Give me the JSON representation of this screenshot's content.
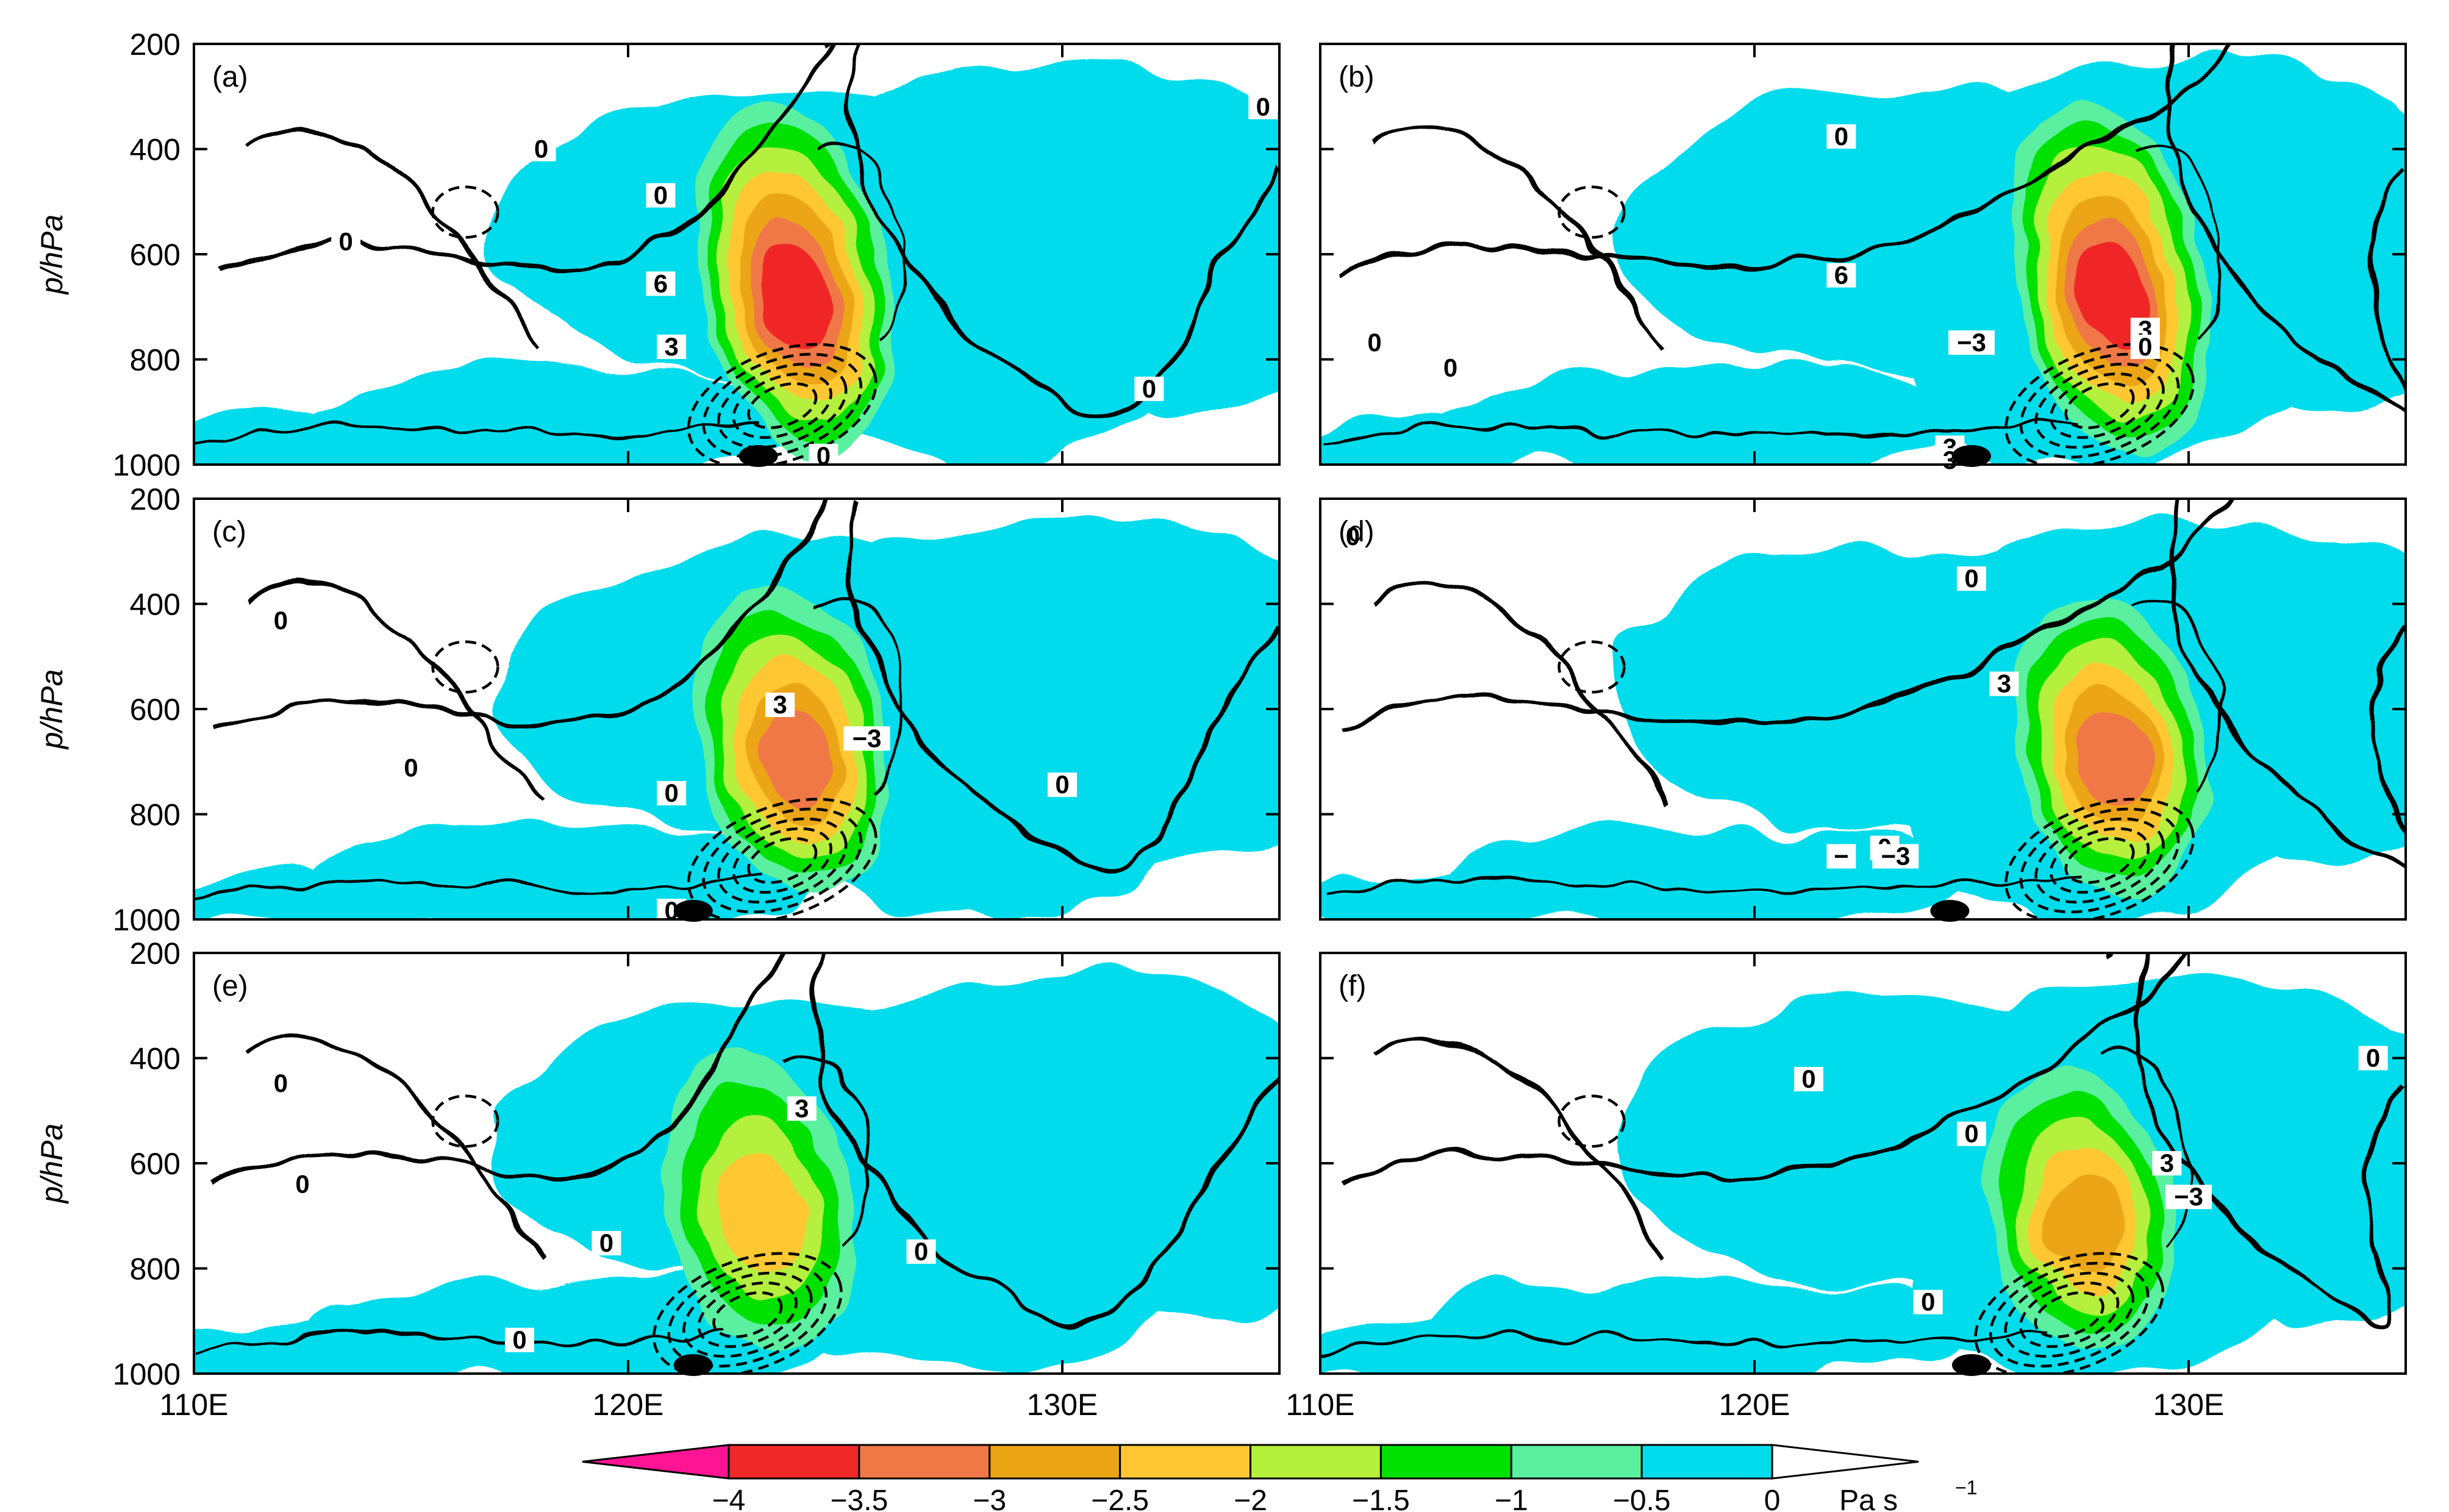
{
  "chart_data": {
    "type": "heatmap",
    "title": "",
    "xlabel": "",
    "ylabel": "p/hPa",
    "x_ticks": [
      "110E",
      "120E",
      "130E"
    ],
    "x_range_deg": [
      110,
      135
    ],
    "y_ticks": [
      "200",
      "400",
      "600",
      "800",
      "1000"
    ],
    "y_range_hPa": [
      200,
      1000
    ],
    "grid": false,
    "fill_variable": "vertical velocity (omega)",
    "contour_lines": "solid positive, dashed negative, bold zero line",
    "colors": {
      "c0": "#ff1493",
      "c1": "#f02828",
      "c2": "#f07846",
      "c3": "#eba514",
      "c4": "#ffc832",
      "c5": "#b4f03c",
      "c6": "#00e100",
      "c7": "#5af0a0",
      "c8": "#00dceb"
    },
    "colorbar": {
      "labels": [
        "−4",
        "−3.5",
        "−3",
        "−2.5",
        "−2",
        "−1.5",
        "−1",
        "−0.5",
        "0"
      ],
      "unit": "Pa s",
      "unit_exp": "−1",
      "levels": [
        -4,
        -3.5,
        -3,
        -2.5,
        -2,
        -1.5,
        -1,
        -0.5,
        0
      ]
    },
    "panels": [
      {
        "label": "(a)",
        "position_hint": "top-left",
        "contour_labels": [
          "0",
          "0",
          "0",
          "0",
          "0",
          "0",
          "6",
          "3"
        ],
        "marker_lon": 123,
        "core": {
          "lon": 123.8,
          "p_top": 300,
          "p_bottom": 990,
          "min_omega": -3.5
        }
      },
      {
        "label": "(b)",
        "position_hint": "top-right",
        "contour_labels": [
          "0",
          "0",
          "0",
          "6",
          "3",
          "−3",
          "0",
          "3",
          "3"
        ],
        "marker_lon": 125,
        "core": {
          "lon": 128.2,
          "p_top": 300,
          "p_bottom": 990,
          "min_omega": -3.5
        }
      },
      {
        "label": "(c)",
        "position_hint": "middle-left",
        "contour_labels": [
          "0",
          "0",
          "0",
          "0",
          "3",
          "−3",
          "0"
        ],
        "marker_lon": 121.5,
        "core": {
          "lon": 123.8,
          "p_top": 360,
          "p_bottom": 960,
          "min_omega": -3
        }
      },
      {
        "label": "(d)",
        "position_hint": "middle-right",
        "contour_labels": [
          "0",
          "0",
          "3",
          "0",
          "−3",
          "−"
        ],
        "marker_lon": 124.5,
        "core": {
          "lon": 128.2,
          "p_top": 380,
          "p_bottom": 960,
          "min_omega": -3
        }
      },
      {
        "label": "(e)",
        "position_hint": "bottom-left",
        "contour_labels": [
          "0",
          "0",
          "0",
          "0",
          "3",
          "0"
        ],
        "marker_lon": 121.5,
        "core": {
          "lon": 123,
          "p_top": 380,
          "p_bottom": 960,
          "min_omega": -2
        }
      },
      {
        "label": "(f)",
        "position_hint": "bottom-right",
        "contour_labels": [
          "0",
          "0",
          "0",
          "3",
          "−3",
          "0"
        ],
        "marker_lon": 125,
        "core": {
          "lon": 127.5,
          "p_top": 420,
          "p_bottom": 960,
          "min_omega": -2.5
        }
      }
    ]
  }
}
